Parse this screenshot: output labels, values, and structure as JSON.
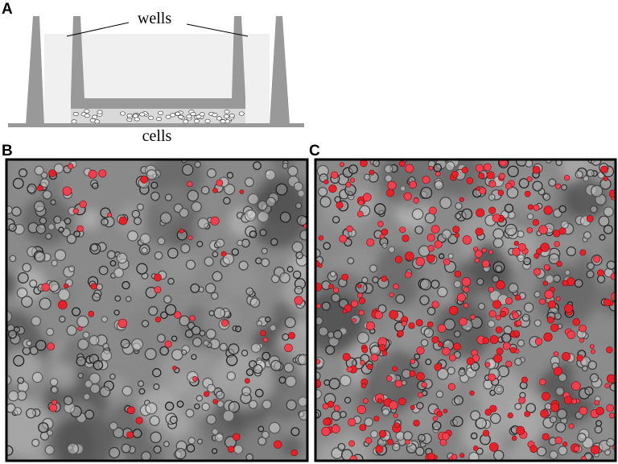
{
  "figure": {
    "panel_a": {
      "label": "A",
      "wells_label": "wells",
      "cells_label": "cells"
    },
    "panel_b": {
      "label": "B"
    },
    "panel_c": {
      "label": "C"
    }
  }
}
